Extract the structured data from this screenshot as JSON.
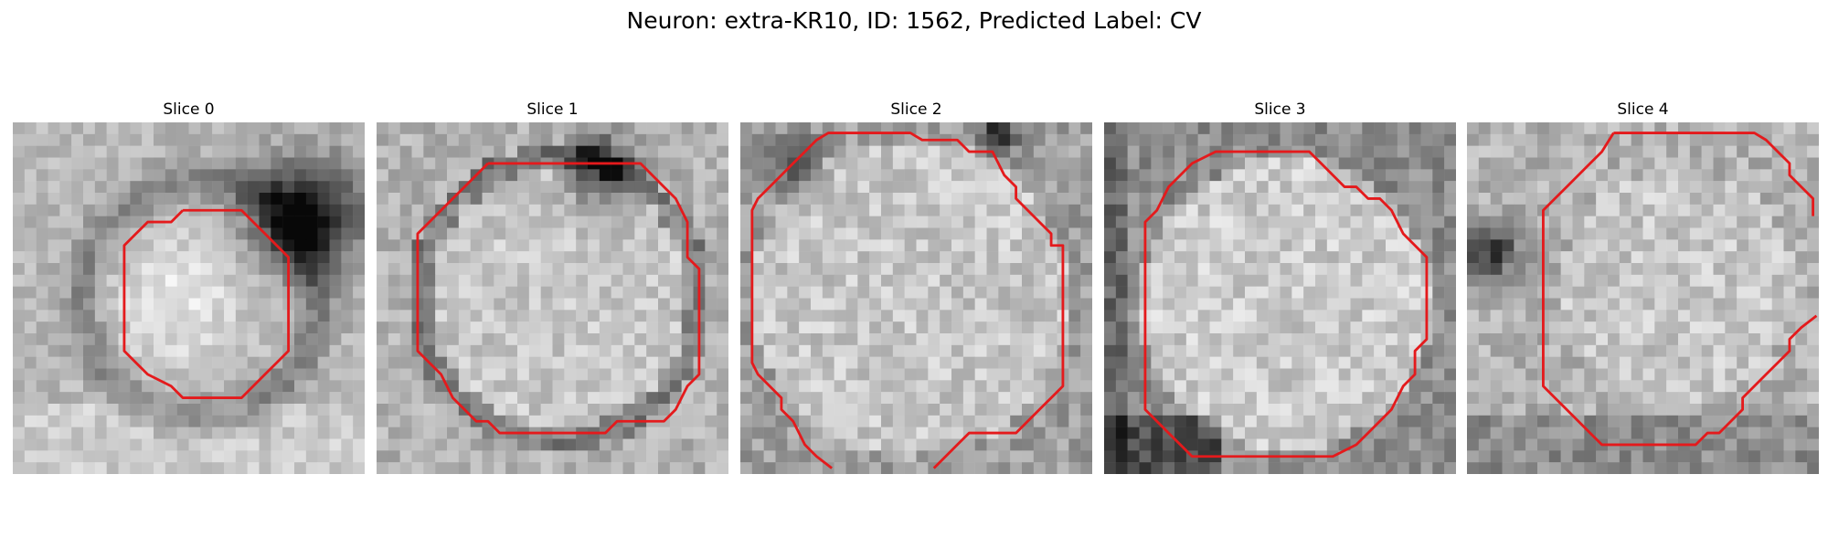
{
  "figure": {
    "title": "Neuron: extra-KR10, ID: 1562, Predicted Label: CV"
  },
  "panels": [
    {
      "title": "Slice 0",
      "contour_color": "#e41a1c",
      "texture": "dark blob upper-right; bright center-left region",
      "contour": [
        [
          14.5,
          7.5
        ],
        [
          19.5,
          7.5
        ],
        [
          20.5,
          8.5
        ],
        [
          21.5,
          9.5
        ],
        [
          22.5,
          10.5
        ],
        [
          23.5,
          11.5
        ],
        [
          23.5,
          19.5
        ],
        [
          22.5,
          20.5
        ],
        [
          21.5,
          21.5
        ],
        [
          20.5,
          22.5
        ],
        [
          19.5,
          23.5
        ],
        [
          14.5,
          23.5
        ],
        [
          13.5,
          22.5
        ],
        [
          11.5,
          21.5
        ],
        [
          10.5,
          20.5
        ],
        [
          9.5,
          19.5
        ],
        [
          9.5,
          10.5
        ],
        [
          10.5,
          9.5
        ],
        [
          11.5,
          8.5
        ],
        [
          13.5,
          8.5
        ],
        [
          14.5,
          7.5
        ]
      ]
    },
    {
      "title": "Slice 1",
      "contour_color": "#e41a1c",
      "texture": "bright round body with dark ring",
      "contour": [
        [
          9.5,
          3.5
        ],
        [
          22.5,
          3.5
        ],
        [
          23.5,
          4.5
        ],
        [
          24.5,
          5.5
        ],
        [
          25.5,
          6.5
        ],
        [
          26.5,
          8.5
        ],
        [
          26.5,
          11.5
        ],
        [
          27.5,
          12.5
        ],
        [
          27.5,
          21.5
        ],
        [
          26.5,
          22.5
        ],
        [
          25.5,
          24.5
        ],
        [
          24.5,
          25.5
        ],
        [
          20.5,
          25.5
        ],
        [
          19.5,
          26.5
        ],
        [
          10.5,
          26.5
        ],
        [
          9.5,
          25.5
        ],
        [
          8.5,
          25.5
        ],
        [
          7.5,
          24.5
        ],
        [
          6.5,
          23.5
        ],
        [
          5.5,
          21.5
        ],
        [
          4.5,
          20.5
        ],
        [
          3.5,
          19.5
        ],
        [
          3.5,
          9.5
        ],
        [
          4.5,
          8.5
        ],
        [
          5.5,
          7.5
        ],
        [
          6.5,
          6.5
        ],
        [
          7.5,
          5.5
        ],
        [
          8.5,
          4.5
        ],
        [
          9.5,
          3.5
        ]
      ]
    },
    {
      "title": "Slice 2",
      "contour_color": "#e41a1c",
      "texture": "large bright body, contour reaches bottom edge",
      "contour": [
        [
          5.5,
          2.5
        ],
        [
          6.5,
          1.5
        ],
        [
          7.5,
          0.9
        ],
        [
          14.5,
          0.9
        ],
        [
          15.5,
          1.5
        ],
        [
          18.5,
          1.5
        ],
        [
          19.5,
          2.5
        ],
        [
          21.5,
          2.5
        ],
        [
          22.5,
          4.5
        ],
        [
          23.5,
          5.5
        ],
        [
          23.5,
          6.5
        ],
        [
          24.5,
          7.5
        ],
        [
          25.5,
          8.5
        ],
        [
          26.5,
          9.5
        ],
        [
          26.5,
          10.5
        ],
        [
          27.5,
          10.5
        ],
        [
          27.5,
          22.5
        ],
        [
          26.5,
          23.5
        ],
        [
          25.5,
          24.5
        ],
        [
          24.5,
          25.5
        ],
        [
          23.5,
          26.5
        ],
        [
          19.5,
          26.5
        ],
        [
          18.5,
          27.5
        ],
        [
          17.5,
          28.5
        ],
        [
          16.5,
          29.5
        ]
      ],
      "contour_b": [
        [
          7.8,
          29.5
        ],
        [
          6.5,
          28.5
        ],
        [
          5.5,
          27.5
        ],
        [
          4.5,
          25.5
        ],
        [
          3.5,
          24.5
        ],
        [
          3.5,
          23.5
        ],
        [
          2.5,
          22.5
        ],
        [
          1.5,
          21.5
        ],
        [
          1.0,
          20.5
        ],
        [
          1.0,
          7.5
        ],
        [
          1.5,
          6.5
        ],
        [
          2.5,
          5.5
        ],
        [
          3.5,
          4.5
        ],
        [
          4.5,
          3.5
        ],
        [
          5.5,
          2.5
        ]
      ]
    },
    {
      "title": "Slice 3",
      "contour_color": "#e41a1c",
      "texture": "large bright granular body, dark bottom-left corner",
      "contour": [
        [
          10.5,
          2.5
        ],
        [
          17.5,
          2.5
        ],
        [
          18.5,
          3.5
        ],
        [
          19.5,
          4.5
        ],
        [
          20.5,
          5.5
        ],
        [
          21.5,
          5.5
        ],
        [
          22.5,
          6.5
        ],
        [
          23.5,
          6.5
        ],
        [
          24.5,
          7.5
        ],
        [
          25.5,
          9.5
        ],
        [
          26.5,
          10.5
        ],
        [
          27.5,
          11.5
        ],
        [
          27.5,
          18.5
        ],
        [
          26.5,
          19.5
        ],
        [
          26.5,
          21.5
        ],
        [
          25.5,
          22.5
        ],
        [
          24.5,
          24.5
        ],
        [
          23.5,
          25.5
        ],
        [
          22.5,
          26.5
        ],
        [
          21.5,
          27.5
        ],
        [
          19.5,
          28.5
        ],
        [
          7.5,
          28.5
        ],
        [
          6.5,
          27.5
        ],
        [
          5.5,
          26.5
        ],
        [
          4.5,
          25.5
        ],
        [
          3.5,
          24.5
        ],
        [
          3.5,
          8.5
        ],
        [
          4.5,
          7.5
        ],
        [
          5.5,
          5.5
        ],
        [
          6.5,
          4.5
        ],
        [
          7.5,
          3.5
        ],
        [
          9.5,
          2.5
        ],
        [
          10.5,
          2.5
        ]
      ]
    },
    {
      "title": "Slice 4",
      "contour_color": "#e41a1c",
      "texture": "medium bright body with dark left patch",
      "contour": [
        [
          12.5,
          0.9
        ],
        [
          24.5,
          0.9
        ],
        [
          25.5,
          1.5
        ],
        [
          26.5,
          2.5
        ],
        [
          27.5,
          3.5
        ],
        [
          27.5,
          4.5
        ],
        [
          28.5,
          5.5
        ],
        [
          29.5,
          6.5
        ],
        [
          29.5,
          8.0
        ]
      ],
      "contour_b": [
        [
          29.8,
          16.5
        ],
        [
          28.5,
          17.5
        ],
        [
          27.5,
          18.5
        ],
        [
          27.5,
          19.5
        ],
        [
          26.5,
          20.5
        ],
        [
          25.5,
          21.5
        ],
        [
          24.5,
          22.5
        ],
        [
          23.5,
          23.5
        ],
        [
          23.5,
          24.5
        ],
        [
          22.5,
          25.5
        ],
        [
          21.5,
          26.5
        ],
        [
          20.5,
          26.5
        ],
        [
          19.5,
          27.5
        ],
        [
          11.5,
          27.5
        ],
        [
          10.5,
          26.5
        ],
        [
          9.5,
          25.5
        ],
        [
          8.5,
          24.5
        ],
        [
          7.5,
          23.5
        ],
        [
          6.5,
          22.5
        ],
        [
          6.5,
          7.5
        ],
        [
          7.5,
          6.5
        ],
        [
          8.5,
          5.5
        ],
        [
          9.5,
          4.5
        ],
        [
          10.5,
          3.5
        ],
        [
          11.5,
          2.5
        ],
        [
          12.5,
          0.9
        ]
      ]
    }
  ]
}
